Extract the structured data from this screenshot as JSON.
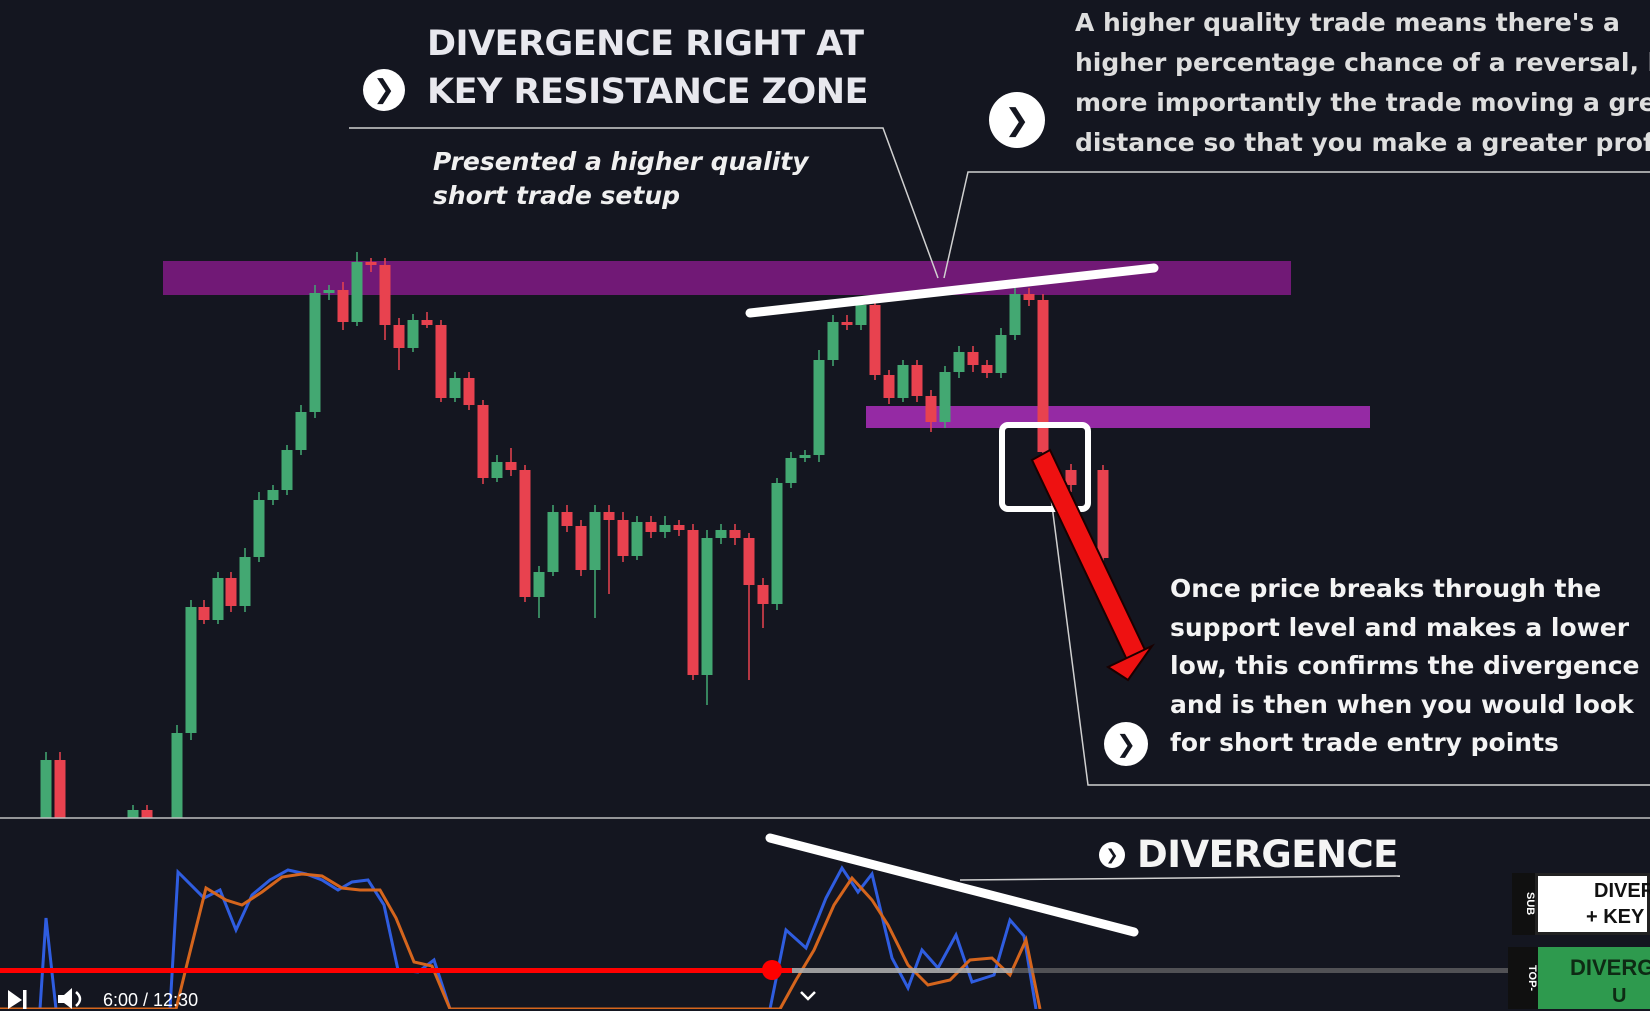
{
  "annotations": {
    "title_line1": "DIVERGENCE RIGHT AT",
    "title_line2": "KEY RESISTANCE ZONE",
    "subtitle_line1": "Presented a higher quality",
    "subtitle_line2": "short trade setup",
    "top_para": [
      "A higher quality trade means there's a",
      "higher percentage chance of a reversal, but",
      "more importantly the trade moving a greater",
      "distance so that you make a greater profit"
    ],
    "bottom_para": [
      "Once price breaks through the",
      "support level and makes a lower",
      "low, this confirms the divergence",
      "and is then when you would look",
      "for short trade entry points"
    ],
    "divergence_label": "DIVERGENCE"
  },
  "player": {
    "time_text": "6:00 / 12:30",
    "progress": 0.48,
    "icons": [
      "next-icon",
      "volume-icon",
      "chevron-down-icon"
    ]
  },
  "end_cards": {
    "card1_strip": "SUB",
    "card1_line1": "DIVER",
    "card1_line2": "+ KEY",
    "card2_strip": "TOP-",
    "card2_line1": "DIVERG",
    "card2_line2": "U"
  },
  "colors": {
    "bull": "#43a872",
    "bear": "#e8424f",
    "resistance": "#8a1a8c",
    "support": "#a42db0",
    "progress": "#ff0000",
    "osc_fast": "#2f5de0",
    "osc_slow": "#d5651d"
  }
}
